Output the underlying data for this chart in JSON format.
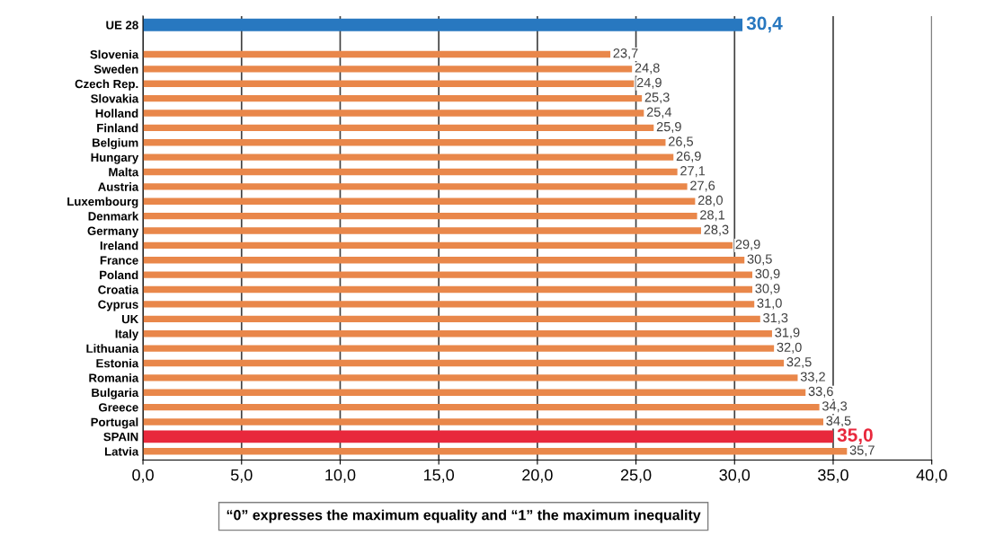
{
  "chart_data": {
    "type": "bar",
    "orientation": "horizontal",
    "categories": [
      "UE 28",
      null,
      "Slovenia",
      "Sweden",
      "Czech Rep.",
      "Slovakia",
      "Holland",
      "Finland",
      "Belgium",
      "Hungary",
      "Malta",
      "Austria",
      "Luxembourg",
      "Denmark",
      "Germany",
      "Ireland",
      "France",
      "Poland",
      "Croatia",
      "Cyprus",
      "UK",
      "Italy",
      "Lithuania",
      "Estonia",
      "Romania",
      "Bulgaria",
      "Greece",
      "Portugal",
      "SPAIN",
      "Latvia"
    ],
    "values": [
      30.4,
      null,
      23.7,
      24.8,
      24.9,
      25.3,
      25.4,
      25.9,
      26.5,
      26.9,
      27.1,
      27.6,
      28.0,
      28.1,
      28.3,
      29.9,
      30.5,
      30.9,
      30.9,
      31.0,
      31.3,
      31.9,
      32.0,
      32.5,
      33.2,
      33.6,
      34.3,
      34.5,
      35.0,
      35.7
    ],
    "value_labels": [
      "30,4",
      null,
      "23,7",
      "24,8",
      "24,9",
      "25,3",
      "25,4",
      "25,9",
      "26,5",
      "26,9",
      "27,1",
      "27,6",
      "28,0",
      "28,1",
      "28,3",
      "29,9",
      "30,5",
      "30,9",
      "30,9",
      "31,0",
      "31,3",
      "31,9",
      "32,0",
      "32,5",
      "33,2",
      "33,6",
      "34,3",
      "34,5",
      "35,0",
      "35,7"
    ],
    "colors": [
      "#2878c0",
      null,
      "#e9874a",
      "#e9874a",
      "#e9874a",
      "#e9874a",
      "#e9874a",
      "#e9874a",
      "#e9874a",
      "#e9874a",
      "#e9874a",
      "#e9874a",
      "#e9874a",
      "#e9874a",
      "#e9874a",
      "#e9874a",
      "#e9874a",
      "#e9874a",
      "#e9874a",
      "#e9874a",
      "#e9874a",
      "#e9874a",
      "#e9874a",
      "#e9874a",
      "#e9874a",
      "#e9874a",
      "#e9874a",
      "#e9874a",
      "#e8283c",
      "#e9874a"
    ],
    "xlim": [
      0,
      40
    ],
    "xticks": [
      {
        "value": 0,
        "label": "0,0"
      },
      {
        "value": 5,
        "label": "5,0"
      },
      {
        "value": 10,
        "label": "10,0"
      },
      {
        "value": 15,
        "label": "15,0"
      },
      {
        "value": 20,
        "label": "20,0"
      },
      {
        "value": 25,
        "label": "25,0"
      },
      {
        "value": 30,
        "label": "30,0"
      },
      {
        "value": 35,
        "label": "35,0"
      },
      {
        "value": 40,
        "label": "40,0"
      }
    ],
    "grid": "x",
    "annotations": [
      "“0” expresses the maximum equality and “1” the maximum inequality"
    ]
  }
}
